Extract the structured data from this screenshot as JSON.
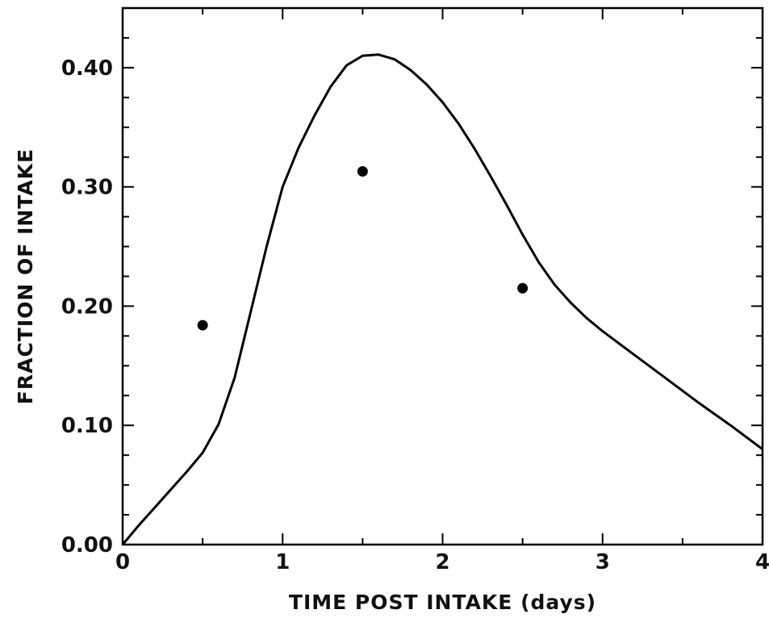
{
  "chart_data": {
    "type": "line",
    "title": "",
    "xlabel": "TIME POST INTAKE (days)",
    "ylabel": "FRACTION OF INTAKE",
    "xlim": [
      0,
      4
    ],
    "ylim": [
      0,
      0.45
    ],
    "x_ticks": [
      {
        "value": 0,
        "label": "0"
      },
      {
        "value": 1,
        "label": "1"
      },
      {
        "value": 2,
        "label": "2"
      },
      {
        "value": 3,
        "label": "3"
      },
      {
        "value": 4,
        "label": "4"
      }
    ],
    "y_ticks": [
      {
        "value": 0.0,
        "label": "0.00"
      },
      {
        "value": 0.1,
        "label": "0.10"
      },
      {
        "value": 0.2,
        "label": "0.20"
      },
      {
        "value": 0.3,
        "label": "0.30"
      },
      {
        "value": 0.4,
        "label": "0.40"
      }
    ],
    "x_minor_step": 0.5,
    "y_minor_step": 0.025,
    "grid": false,
    "series": [
      {
        "kind": "line",
        "color": "#000000",
        "x": [
          0,
          0.1,
          0.2,
          0.3,
          0.4,
          0.5,
          0.6,
          0.7,
          0.8,
          0.9,
          1.0,
          1.1,
          1.2,
          1.3,
          1.4,
          1.5,
          1.6,
          1.7,
          1.8,
          1.9,
          2.0,
          2.1,
          2.2,
          2.3,
          2.4,
          2.5,
          2.6,
          2.7,
          2.8,
          2.9,
          3.0,
          3.2,
          3.4,
          3.6,
          3.8,
          4.0
        ],
        "y": [
          0.0,
          0.016,
          0.031,
          0.046,
          0.061,
          0.077,
          0.101,
          0.14,
          0.195,
          0.25,
          0.3,
          0.333,
          0.36,
          0.384,
          0.402,
          0.41,
          0.411,
          0.407,
          0.398,
          0.386,
          0.371,
          0.353,
          0.332,
          0.309,
          0.285,
          0.26,
          0.237,
          0.218,
          0.203,
          0.19,
          0.179,
          0.159,
          0.139,
          0.119,
          0.1,
          0.08
        ]
      },
      {
        "kind": "points",
        "color": "#000000",
        "x": [
          0.5,
          1.5,
          2.5
        ],
        "y": [
          0.184,
          0.313,
          0.215
        ]
      }
    ]
  }
}
